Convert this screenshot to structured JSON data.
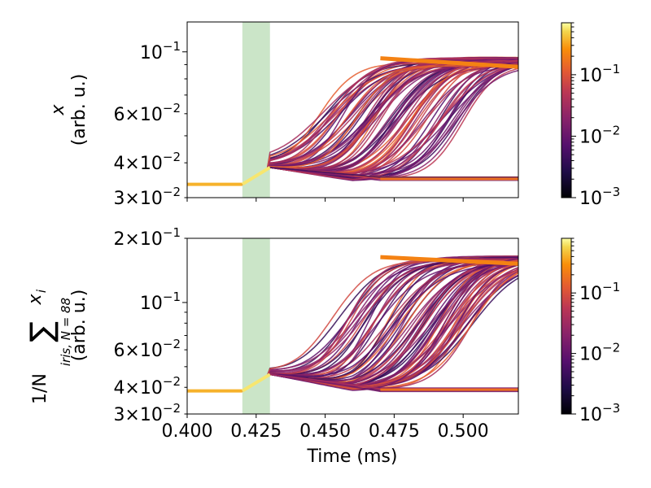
{
  "chart_data": [
    {
      "type": "heatmap",
      "panel": "top",
      "ylabel_symbol": "x",
      "ylabel_unit": "(arb. u.)",
      "xlim": [
        0.4,
        0.52
      ],
      "ylim": [
        0.03,
        0.128
      ],
      "yscale": "log",
      "y_major_ticks": [
        {
          "value": 0.1,
          "mant": "10",
          "exp": "−1"
        }
      ],
      "y_minor_labeled": [
        {
          "value": 0.06,
          "mant": "6×10",
          "exp": "−2"
        },
        {
          "value": 0.04,
          "mant": "4×10",
          "exp": "−2"
        },
        {
          "value": 0.03,
          "mant": "3×10",
          "exp": "−2"
        }
      ],
      "shaded_interval": [
        0.42,
        0.43
      ],
      "shade_color": "#a9d4a4",
      "start_time": 0.4,
      "initial_level": 0.0335,
      "ramp_end_time": 0.43,
      "ramp_end_level": 0.0385,
      "low_branch_level": 0.035,
      "high_branch_level": 0.093,
      "rise_center_min": 0.447,
      "rise_center_max": 0.5,
      "n_traces": 88,
      "colorbar": {
        "colormap": "inferno",
        "scale": "log",
        "vmin": 0.001,
        "vmax": 0.7,
        "ticks": [
          {
            "value": 0.1,
            "mant": "10",
            "exp": "−1"
          },
          {
            "value": 0.01,
            "mant": "10",
            "exp": "−2"
          },
          {
            "value": 0.001,
            "mant": "10",
            "exp": "−3"
          }
        ]
      }
    },
    {
      "type": "heatmap",
      "panel": "bottom",
      "ylabel_prefix": "1/N",
      "ylabel_sum": "∑",
      "ylabel_index": "iris, N = 88",
      "ylabel_term": "x",
      "ylabel_term_sub": "i",
      "ylabel_unit": "(arb. u.)",
      "xlabel": "Time (ms)",
      "xlim": [
        0.4,
        0.52
      ],
      "xticks": [
        "0.400",
        "0.425",
        "0.450",
        "0.475",
        "0.500"
      ],
      "xtick_values": [
        0.4,
        0.425,
        0.45,
        0.475,
        0.5
      ],
      "ylim": [
        0.03,
        0.2
      ],
      "yscale": "log",
      "y_major_ticks": [
        {
          "value": 0.1,
          "mant": "10",
          "exp": "−1"
        }
      ],
      "y_minor_labeled": [
        {
          "value": 0.2,
          "mant": "2×10",
          "exp": "−1"
        },
        {
          "value": 0.06,
          "mant": "6×10",
          "exp": "−2"
        },
        {
          "value": 0.04,
          "mant": "4×10",
          "exp": "−2"
        },
        {
          "value": 0.03,
          "mant": "3×10",
          "exp": "−2"
        }
      ],
      "shaded_interval": [
        0.42,
        0.43
      ],
      "shade_color": "#a9d4a4",
      "start_time": 0.4,
      "initial_level": 0.0385,
      "ramp_end_time": 0.43,
      "ramp_end_level": 0.046,
      "low_branch_level": 0.039,
      "high_branch_level": 0.16,
      "rise_center_min": 0.45,
      "rise_center_max": 0.505,
      "n_traces": 88,
      "colorbar": {
        "colormap": "inferno",
        "scale": "log",
        "vmin": 0.001,
        "vmax": 0.8,
        "ticks": [
          {
            "value": 0.1,
            "mant": "10",
            "exp": "−1"
          },
          {
            "value": 0.01,
            "mant": "10",
            "exp": "−2"
          },
          {
            "value": 0.001,
            "mant": "10",
            "exp": "−3"
          }
        ]
      }
    }
  ]
}
